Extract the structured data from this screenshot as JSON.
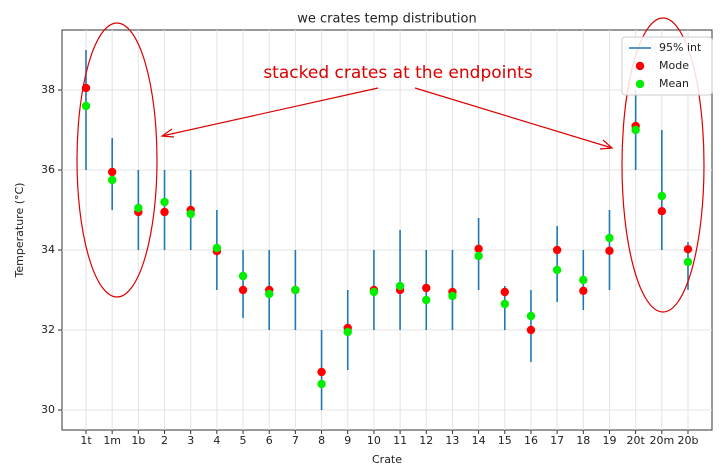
{
  "chart_data": {
    "type": "errorpoints",
    "title": "we crates temp distribution",
    "xlabel": "Crate",
    "ylabel": "Temperature (°C)",
    "annotation": "stacked crates at the endpoints",
    "categories": [
      "1t",
      "1m",
      "1b",
      "2",
      "3",
      "4",
      "5",
      "6",
      "7",
      "8",
      "9",
      "10",
      "11",
      "12",
      "13",
      "14",
      "15",
      "16",
      "17",
      "18",
      "19",
      "20t",
      "20m",
      "20b"
    ],
    "series": [
      {
        "name": "95% int",
        "color": "#1f77b4",
        "low": [
          36,
          35,
          34,
          34,
          34,
          33,
          32.3,
          32,
          32,
          30,
          31,
          32,
          32,
          32,
          32,
          33,
          32,
          31.2,
          32.7,
          32.5,
          33,
          36,
          34,
          33
        ],
        "high": [
          39,
          36.8,
          36,
          36,
          36,
          35,
          34,
          34,
          34,
          32,
          33,
          34,
          34.5,
          34,
          34,
          34.8,
          33.1,
          33,
          34.6,
          34,
          35,
          38,
          37,
          34.2
        ]
      },
      {
        "name": "Mode",
        "color": "#ff0000",
        "values": [
          38.05,
          35.95,
          34.95,
          34.95,
          35.0,
          33.97,
          33.0,
          33.0,
          33.0,
          30.95,
          32.05,
          33.0,
          33.0,
          33.05,
          32.95,
          34.03,
          32.95,
          32.0,
          34.0,
          32.98,
          33.98,
          37.1,
          34.97,
          34.02
        ]
      },
      {
        "name": "Mean",
        "color": "#00ee00",
        "values": [
          37.6,
          35.75,
          35.05,
          35.2,
          34.9,
          34.05,
          33.35,
          32.9,
          33.0,
          30.65,
          31.95,
          32.95,
          33.1,
          32.75,
          32.85,
          33.85,
          32.65,
          32.35,
          33.5,
          33.25,
          34.3,
          37.0,
          35.35,
          33.7
        ]
      }
    ],
    "ylim": [
      29.5,
      39.5
    ],
    "yticks": [
      30,
      32,
      34,
      36,
      38
    ],
    "grid": true,
    "legend": "upper right"
  }
}
